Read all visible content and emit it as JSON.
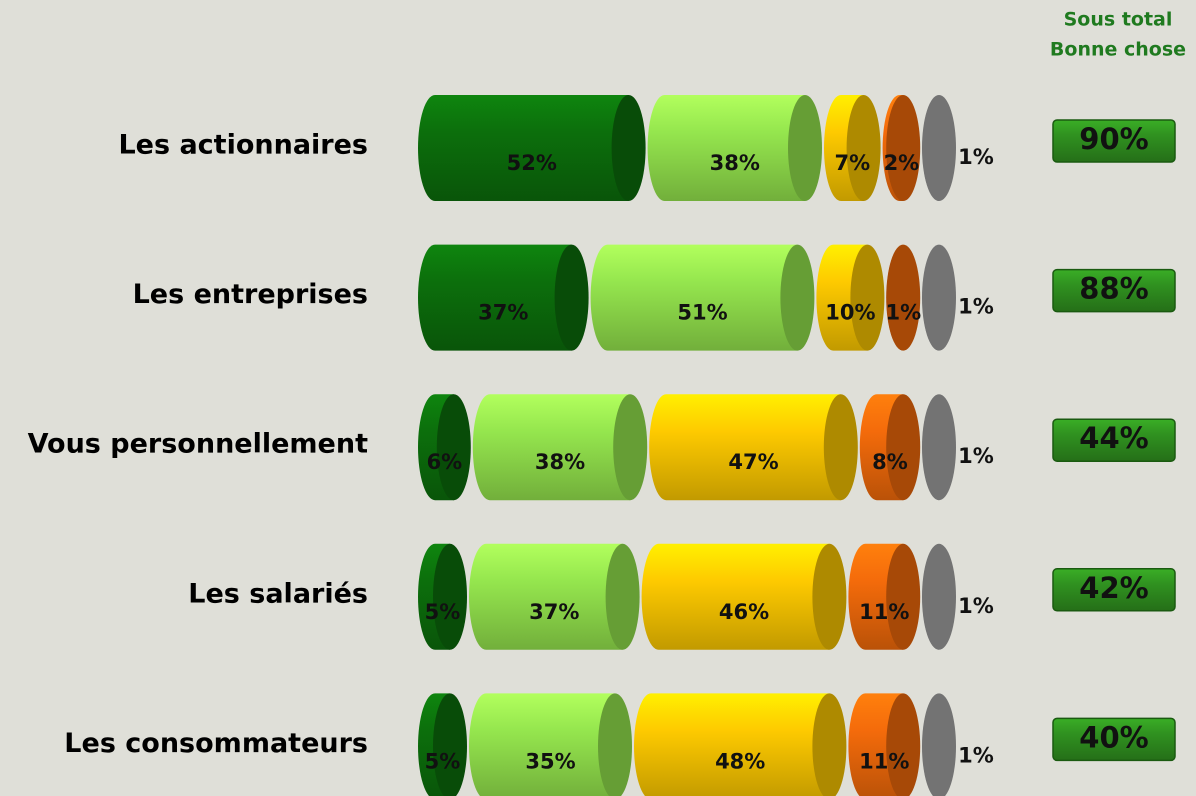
{
  "chart_data": {
    "type": "stacked_bar_horizontal",
    "categories": [
      "Les actionnaires",
      "Les entreprises",
      "Vous personnellement",
      "Les salariés",
      "Les consommateurs"
    ],
    "series": [
      {
        "color": "#0b6a0b",
        "values": [
          52,
          37,
          6,
          5,
          5
        ],
        "value_labels": [
          "52%",
          "37%",
          "6%",
          "5%",
          "5%"
        ]
      },
      {
        "color": "#8edb4a",
        "values": [
          38,
          51,
          38,
          37,
          35
        ],
        "value_labels": [
          "38%",
          "51%",
          "38%",
          "37%",
          "35%"
        ]
      },
      {
        "color": "#f2c000",
        "values": [
          7,
          10,
          47,
          46,
          48
        ],
        "value_labels": [
          "7%",
          "10%",
          "47%",
          "46%",
          "48%"
        ]
      },
      {
        "color": "#e8660a",
        "values": [
          2,
          1,
          8,
          11,
          11
        ],
        "value_labels": [
          "2%",
          "1%",
          "8%",
          "11%",
          "11%"
        ]
      },
      {
        "color": "#a0a0a0",
        "values": [
          1,
          1,
          1,
          1,
          1
        ],
        "value_labels": [
          "1%",
          "1%",
          "1%",
          "1%",
          "1%"
        ]
      }
    ],
    "subtotal_header": [
      "Sous total",
      "Bonne chose"
    ],
    "subtotal": {
      "color": "#2e8b1e",
      "values": [
        90,
        88,
        44,
        42,
        40
      ],
      "value_labels": [
        "90%",
        "88%",
        "44%",
        "42%",
        "40%"
      ]
    }
  }
}
